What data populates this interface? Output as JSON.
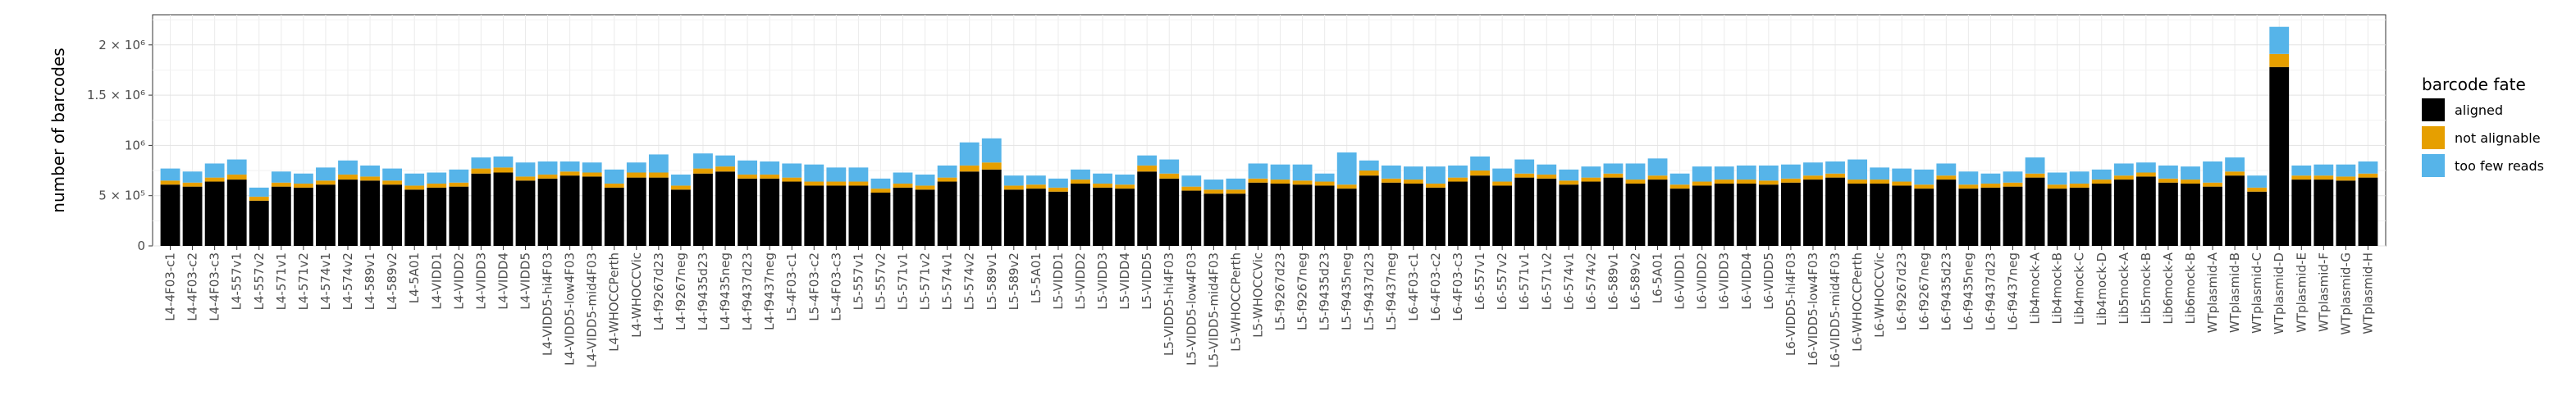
{
  "chart_data": {
    "type": "bar",
    "stacked": true,
    "xlabel": "",
    "ylabel": "number of barcodes",
    "ylim": [
      0,
      2300000
    ],
    "yticks": [
      0,
      500000,
      1000000,
      1500000,
      2000000
    ],
    "ytick_labels": [
      "0",
      "5 × 10⁵",
      "10⁶",
      "1.5 × 10⁶",
      "2 × 10⁶"
    ],
    "grid": true,
    "legend_position": "right",
    "legend_title": "barcode fate",
    "categories": [
      "L4-4F03-c1",
      "L4-4F03-c2",
      "L4-4F03-c3",
      "L4-557v1",
      "L4-557v2",
      "L4-571v1",
      "L4-571v2",
      "L4-574v1",
      "L4-574v2",
      "L4-589v1",
      "L4-589v2",
      "L4-5A01",
      "L4-VIDD1",
      "L4-VIDD2",
      "L4-VIDD3",
      "L4-VIDD4",
      "L4-VIDD5",
      "L4-VIDD5-hi4F03",
      "L4-VIDD5-low4F03",
      "L4-VIDD5-mid4F03",
      "L4-WHOCCPerth",
      "L4-WHOCCVic",
      "L4-f9267d23",
      "L4-f9267neg",
      "L4-f9435d23",
      "L4-f9435neg",
      "L4-f9437d23",
      "L4-f9437neg",
      "L5-4F03-c1",
      "L5-4F03-c2",
      "L5-4F03-c3",
      "L5-557v1",
      "L5-557v2",
      "L5-571v1",
      "L5-571v2",
      "L5-574v1",
      "L5-574v2",
      "L5-589v1",
      "L5-589v2",
      "L5-5A01",
      "L5-VIDD1",
      "L5-VIDD2",
      "L5-VIDD3",
      "L5-VIDD4",
      "L5-VIDD5",
      "L5-VIDD5-hi4F03",
      "L5-VIDD5-low4F03",
      "L5-VIDD5-mid4F03",
      "L5-WHOCCPerth",
      "L5-WHOCCVic",
      "L5-f9267d23",
      "L5-f9267neg",
      "L5-f9435d23",
      "L5-f9435neg",
      "L5-f9437d23",
      "L5-f9437neg",
      "L6-4F03-c1",
      "L6-4F03-c2",
      "L6-4F03-c3",
      "L6-557v1",
      "L6-557v2",
      "L6-571v1",
      "L6-571v2",
      "L6-574v1",
      "L6-574v2",
      "L6-589v1",
      "L6-589v2",
      "L6-5A01",
      "L6-VIDD1",
      "L6-VIDD2",
      "L6-VIDD3",
      "L6-VIDD4",
      "L6-VIDD5",
      "L6-VIDD5-hi4F03",
      "L6-VIDD5-low4F03",
      "L6-VIDD5-mid4F03",
      "L6-WHOCCPerth",
      "L6-WHOCCVic",
      "L6-f9267d23",
      "L6-f9267neg",
      "L6-f9435d23",
      "L6-f9435neg",
      "L6-f9437d23",
      "L6-f9437neg",
      "Lib4mock-A",
      "Lib4mock-B",
      "Lib4mock-C",
      "Lib4mock-D",
      "Lib5mock-A",
      "Lib5mock-B",
      "Lib6mock-A",
      "Lib6mock-B",
      "WTplasmid-A",
      "WTplasmid-B",
      "WTplasmid-C",
      "WTplasmid-D",
      "WTplasmid-E",
      "WTplasmid-F",
      "WTplasmid-G",
      "WTplasmid-H"
    ],
    "series": [
      {
        "name": "aligned",
        "color": "#000000",
        "values": [
          610000,
          590000,
          640000,
          660000,
          450000,
          590000,
          580000,
          610000,
          660000,
          650000,
          610000,
          560000,
          580000,
          590000,
          720000,
          730000,
          650000,
          670000,
          700000,
          690000,
          580000,
          680000,
          680000,
          560000,
          720000,
          740000,
          670000,
          670000,
          640000,
          600000,
          600000,
          600000,
          530000,
          580000,
          560000,
          640000,
          740000,
          760000,
          560000,
          570000,
          540000,
          620000,
          580000,
          570000,
          740000,
          670000,
          550000,
          520000,
          520000,
          630000,
          620000,
          610000,
          600000,
          570000,
          700000,
          630000,
          620000,
          580000,
          640000,
          700000,
          600000,
          680000,
          670000,
          610000,
          640000,
          680000,
          620000,
          660000,
          570000,
          600000,
          620000,
          620000,
          610000,
          630000,
          660000,
          680000,
          620000,
          620000,
          600000,
          570000,
          660000,
          570000,
          580000,
          590000,
          680000,
          570000,
          580000,
          620000,
          660000,
          690000,
          630000,
          620000,
          590000,
          700000,
          540000,
          1780000,
          660000,
          660000,
          650000,
          680000
        ]
      },
      {
        "name": "not alignable",
        "color": "#E69F00",
        "values": [
          40000,
          40000,
          40000,
          50000,
          40000,
          40000,
          40000,
          40000,
          50000,
          40000,
          40000,
          40000,
          40000,
          40000,
          50000,
          50000,
          40000,
          40000,
          40000,
          40000,
          40000,
          50000,
          50000,
          40000,
          50000,
          50000,
          40000,
          40000,
          40000,
          40000,
          40000,
          40000,
          40000,
          40000,
          40000,
          40000,
          60000,
          70000,
          40000,
          40000,
          40000,
          40000,
          40000,
          40000,
          60000,
          50000,
          40000,
          40000,
          40000,
          40000,
          40000,
          40000,
          40000,
          40000,
          50000,
          40000,
          40000,
          40000,
          40000,
          50000,
          40000,
          40000,
          40000,
          40000,
          40000,
          40000,
          40000,
          40000,
          40000,
          40000,
          40000,
          40000,
          40000,
          40000,
          40000,
          40000,
          40000,
          40000,
          40000,
          40000,
          40000,
          40000,
          40000,
          40000,
          40000,
          40000,
          40000,
          40000,
          40000,
          40000,
          40000,
          40000,
          40000,
          40000,
          40000,
          130000,
          40000,
          40000,
          40000,
          40000
        ]
      },
      {
        "name": "too few reads",
        "color": "#56B4E9",
        "values": [
          120000,
          110000,
          140000,
          150000,
          90000,
          110000,
          100000,
          130000,
          140000,
          110000,
          120000,
          120000,
          110000,
          130000,
          110000,
          110000,
          140000,
          130000,
          100000,
          100000,
          140000,
          100000,
          180000,
          110000,
          150000,
          110000,
          140000,
          130000,
          140000,
          170000,
          140000,
          140000,
          100000,
          110000,
          110000,
          120000,
          230000,
          240000,
          100000,
          90000,
          90000,
          100000,
          100000,
          100000,
          100000,
          140000,
          110000,
          100000,
          110000,
          150000,
          150000,
          160000,
          80000,
          320000,
          100000,
          130000,
          130000,
          170000,
          120000,
          140000,
          130000,
          140000,
          100000,
          110000,
          110000,
          100000,
          160000,
          170000,
          110000,
          150000,
          130000,
          140000,
          150000,
          140000,
          130000,
          120000,
          200000,
          120000,
          130000,
          150000,
          120000,
          130000,
          100000,
          110000,
          160000,
          120000,
          120000,
          100000,
          120000,
          100000,
          130000,
          130000,
          210000,
          140000,
          120000,
          270000,
          100000,
          110000,
          120000,
          120000
        ]
      }
    ]
  }
}
